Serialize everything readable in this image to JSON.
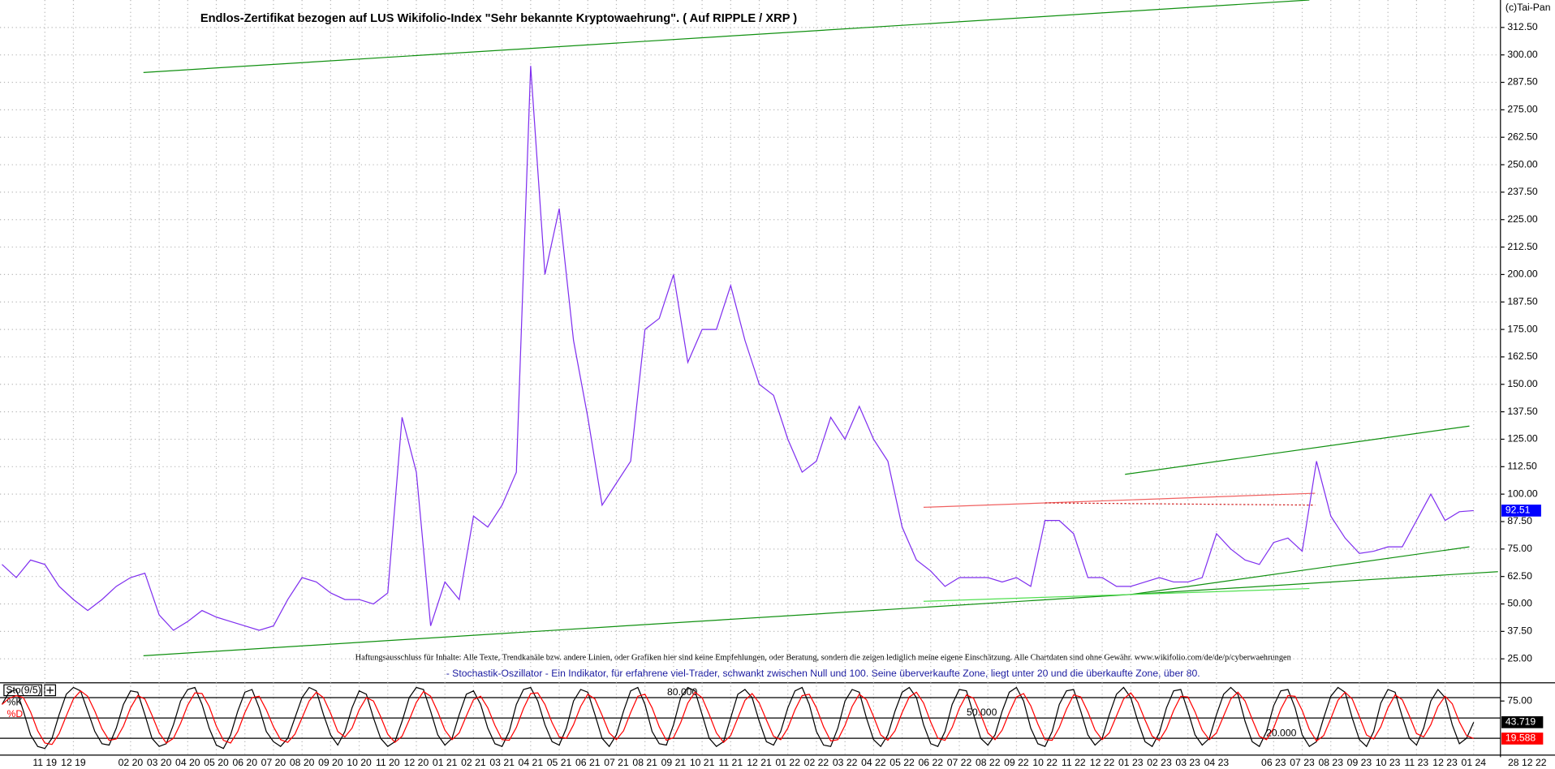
{
  "chart_data": [
    {
      "type": "line",
      "title": "Endlos-Zertifikat bezogen auf LUS Wikifolio-Index \"Sehr bekannte Kryptowaehrung\". ( Auf RIPPLE / XRP )",
      "copyright": "(c)Tai-Pan",
      "disclaimer": "Haftungsausschluss für Inhalte: Alle Texte, Trendkanäle bzw. andere Linien, oder Grafiken hier sind keine Empfehlungen, oder Beratung, sondern die zeigen lediglich meine eigene Einschätzung. Alle Chartdaten sind ohne Gewähr.  www.wikifolio.com/de/de/p/cyberwaehrungen",
      "x_end_label": "28 12 22",
      "categories": [
        null,
        null,
        null,
        "11 19",
        null,
        "12 19",
        null,
        null,
        null,
        "02 20",
        null,
        "03 20",
        null,
        "04 20",
        null,
        "05 20",
        null,
        "06 20",
        null,
        "07 20",
        null,
        "08 20",
        null,
        "09 20",
        null,
        "10 20",
        null,
        "11 20",
        null,
        "12 20",
        null,
        "01 21",
        null,
        "02 21",
        null,
        "03 21",
        null,
        "04 21",
        null,
        "05 21",
        null,
        "06 21",
        null,
        "07 21",
        null,
        "08 21",
        null,
        "09 21",
        null,
        "10 21",
        null,
        "11 21",
        null,
        "12 21",
        null,
        "01 22",
        null,
        "02 22",
        null,
        "03 22",
        null,
        "04 22",
        null,
        "05 22",
        null,
        "06 22",
        null,
        "07 22",
        null,
        "08 22",
        null,
        "09 22",
        null,
        "10 22",
        null,
        "11 22",
        null,
        "12 22",
        null,
        "01 23",
        null,
        "02 23",
        null,
        "03 23",
        null,
        "04 23",
        null,
        null,
        null,
        "06 23",
        null,
        "07 23",
        null,
        "08 23",
        null,
        "09 23",
        null,
        "10 23",
        null,
        "11 23",
        null,
        "12 23",
        null,
        "01 24"
      ],
      "values": [
        68,
        62,
        70,
        68,
        58,
        52,
        47,
        52,
        58,
        62,
        64,
        45,
        38,
        42,
        47,
        44,
        42,
        40,
        38,
        40,
        52,
        62,
        60,
        55,
        52,
        52,
        50,
        55,
        135,
        110,
        40,
        60,
        52,
        90,
        85,
        95,
        110,
        295,
        200,
        230,
        170,
        135,
        95,
        105,
        115,
        175,
        180,
        200,
        160,
        175,
        175,
        195,
        170,
        150,
        145,
        125,
        110,
        115,
        135,
        125,
        140,
        125,
        115,
        85,
        70,
        65,
        58,
        62,
        62,
        62,
        60,
        62,
        58,
        88,
        88,
        82,
        62,
        62,
        58,
        58,
        60,
        62,
        60,
        60,
        62,
        82,
        75,
        70,
        68,
        78,
        80,
        74,
        115,
        90,
        80,
        73,
        74,
        76,
        76,
        88,
        100,
        88,
        92,
        92.51
      ],
      "color": "#7f2fef",
      "last_value_color": "#0000ff",
      "ylim": [
        15,
        325
      ],
      "yticks": [
        {
          "value": 25,
          "label": "25.00"
        },
        {
          "value": 37.5,
          "label": "37.50"
        },
        {
          "value": 50,
          "label": "50.00"
        },
        {
          "value": 62.5,
          "label": "62.50"
        },
        {
          "value": 75,
          "label": "75.00"
        },
        {
          "value": 87.5,
          "label": "87.50"
        },
        {
          "value": 100,
          "label": "100.00"
        },
        {
          "value": 112.5,
          "label": "112.50"
        },
        {
          "value": 125,
          "label": "125.00"
        },
        {
          "value": 137.5,
          "label": "137.50"
        },
        {
          "value": 150,
          "label": "150.00"
        },
        {
          "value": 162.5,
          "label": "162.50"
        },
        {
          "value": 175,
          "label": "175.00"
        },
        {
          "value": 187.5,
          "label": "187.50"
        },
        {
          "value": 200,
          "label": "200.00"
        },
        {
          "value": 212.5,
          "label": "212.50"
        },
        {
          "value": 225,
          "label": "225.00"
        },
        {
          "value": 237.5,
          "label": "237.50"
        },
        {
          "value": 250,
          "label": "250.00"
        },
        {
          "value": 262.5,
          "label": "262.50"
        },
        {
          "value": 275,
          "label": "275.00"
        },
        {
          "value": 287.5,
          "label": "287.50"
        },
        {
          "value": 300,
          "label": "300.00"
        },
        {
          "value": 312.5,
          "label": "312.50"
        }
      ],
      "grid": true,
      "lines": [
        {
          "color": "#109010",
          "x": [
            9.9,
            91.5
          ],
          "y": [
            292,
            325
          ]
        },
        {
          "color": "#109010",
          "x": [
            9.9,
            104.7
          ],
          "y": [
            26.4,
            64.7
          ]
        },
        {
          "color": "#109010",
          "x": [
            78.6,
            102.7
          ],
          "y": [
            109,
            131
          ]
        },
        {
          "color": "#109010",
          "x": [
            79,
            102.7
          ],
          "y": [
            54.3,
            76
          ]
        },
        {
          "color": "#50e050",
          "x": [
            64.5,
            91.5
          ],
          "y": [
            51.2,
            57
          ]
        },
        {
          "color": "#f06060",
          "x": [
            64.5,
            91.9
          ],
          "y": [
            94,
            100.4
          ]
        },
        {
          "color": "#d02020",
          "dashed": true,
          "x": [
            73,
            91.9
          ],
          "y": [
            96,
            95
          ]
        }
      ]
    },
    {
      "type": "line",
      "label": "Sto(9/5)",
      "subtitle": "- Stochastik-Oszillator - Ein Indikator, für erfahrene viel-Trader, schwankt zwischen Null und 100. Seine überverkaufte Zone, liegt unter 20 und die überkaufte Zone, über 80.",
      "ylim": [
        0,
        100
      ],
      "yticks": [
        {
          "value": 75,
          "label": "75.00"
        }
      ],
      "levels": [
        {
          "value": 80,
          "label": "80.000"
        },
        {
          "value": 50,
          "label": "50.000"
        },
        {
          "value": 20,
          "label": "20.000"
        }
      ],
      "series": [
        {
          "name": "%K",
          "color": "#000000",
          "values": [
            70,
            88,
            92,
            60,
            25,
            8,
            5,
            20,
            55,
            85,
            95,
            90,
            60,
            30,
            12,
            10,
            35,
            70,
            90,
            88,
            55,
            20,
            8,
            12,
            40,
            75,
            92,
            95,
            70,
            35,
            10,
            5,
            25,
            60,
            88,
            92,
            65,
            30,
            15,
            8,
            20,
            50,
            80,
            95,
            90,
            55,
            25,
            10,
            30,
            65,
            90,
            85,
            50,
            20,
            8,
            15,
            45,
            80,
            95,
            92,
            60,
            25,
            10,
            20,
            55,
            85,
            90,
            70,
            35,
            12,
            8,
            30,
            70,
            92,
            95,
            75,
            40,
            15,
            10,
            35,
            75,
            92,
            88,
            55,
            20,
            8,
            25,
            60,
            90,
            95,
            70,
            30,
            12,
            10,
            40,
            80,
            95,
            90,
            55,
            20,
            8,
            15,
            50,
            85,
            92,
            80,
            45,
            15,
            10,
            30,
            65,
            90,
            95,
            70,
            30,
            10,
            8,
            35,
            75,
            92,
            88,
            50,
            18,
            8,
            25,
            60,
            88,
            95,
            80,
            40,
            12,
            8,
            30,
            70,
            92,
            90,
            55,
            20,
            10,
            25,
            60,
            88,
            95,
            75,
            35,
            12,
            8,
            30,
            70,
            90,
            92,
            60,
            25,
            10,
            20,
            55,
            85,
            95,
            80,
            45,
            15,
            8,
            28,
            65,
            90,
            92,
            60,
            25,
            10,
            20,
            55,
            85,
            95,
            85,
            45,
            15,
            8,
            30,
            68,
            90,
            92,
            65,
            25,
            8,
            15,
            50,
            82,
            95,
            88,
            50,
            18,
            8,
            30,
            72,
            92,
            88,
            52,
            20,
            10,
            35,
            75,
            92,
            80,
            40,
            12,
            20,
            43.719
          ]
        },
        {
          "name": "%D",
          "color": "#ff0000",
          "values": [
            70,
            79,
            83,
            80,
            59,
            31,
            13,
            11,
            27,
            53,
            78,
            90,
            82,
            60,
            34,
            17,
            19,
            38,
            65,
            83,
            78,
            54,
            28,
            13,
            20,
            42,
            69,
            87,
            86,
            67,
            38,
            17,
            13,
            30,
            58,
            80,
            82,
            62,
            37,
            18,
            14,
            26,
            50,
            75,
            88,
            80,
            57,
            30,
            22,
            35,
            62,
            80,
            75,
            52,
            26,
            14,
            23,
            47,
            73,
            89,
            82,
            59,
            32,
            18,
            28,
            53,
            77,
            82,
            65,
            39,
            18,
            17,
            36,
            64,
            86,
            87,
            70,
            43,
            22,
            20,
            40,
            67,
            85,
            78,
            54,
            28,
            18,
            31,
            58,
            82,
            85,
            65,
            37,
            17,
            21,
            43,
            72,
            88,
            80,
            55,
            28,
            14,
            24,
            50,
            76,
            86,
            72,
            47,
            23,
            18,
            35,
            62,
            83,
            85,
            65,
            37,
            16,
            18,
            39,
            67,
            85,
            77,
            52,
            25,
            17,
            31,
            58,
            81,
            88,
            72,
            44,
            20,
            17,
            36,
            64,
            84,
            79,
            55,
            28,
            18,
            32,
            58,
            81,
            86,
            68,
            41,
            18,
            17,
            36,
            63,
            84,
            81,
            59,
            32,
            18,
            28,
            53,
            78,
            87,
            73,
            47,
            23,
            17,
            34,
            61,
            82,
            81,
            59,
            32,
            18,
            28,
            53,
            78,
            88,
            75,
            48,
            23,
            18,
            35,
            63,
            83,
            82,
            61,
            33,
            16,
            24,
            49,
            76,
            88,
            78,
            52,
            25,
            19,
            37,
            65,
            84,
            77,
            53,
            27,
            22,
            40,
            67,
            82,
            71,
            44,
            24,
            19.588
          ]
        }
      ]
    }
  ]
}
